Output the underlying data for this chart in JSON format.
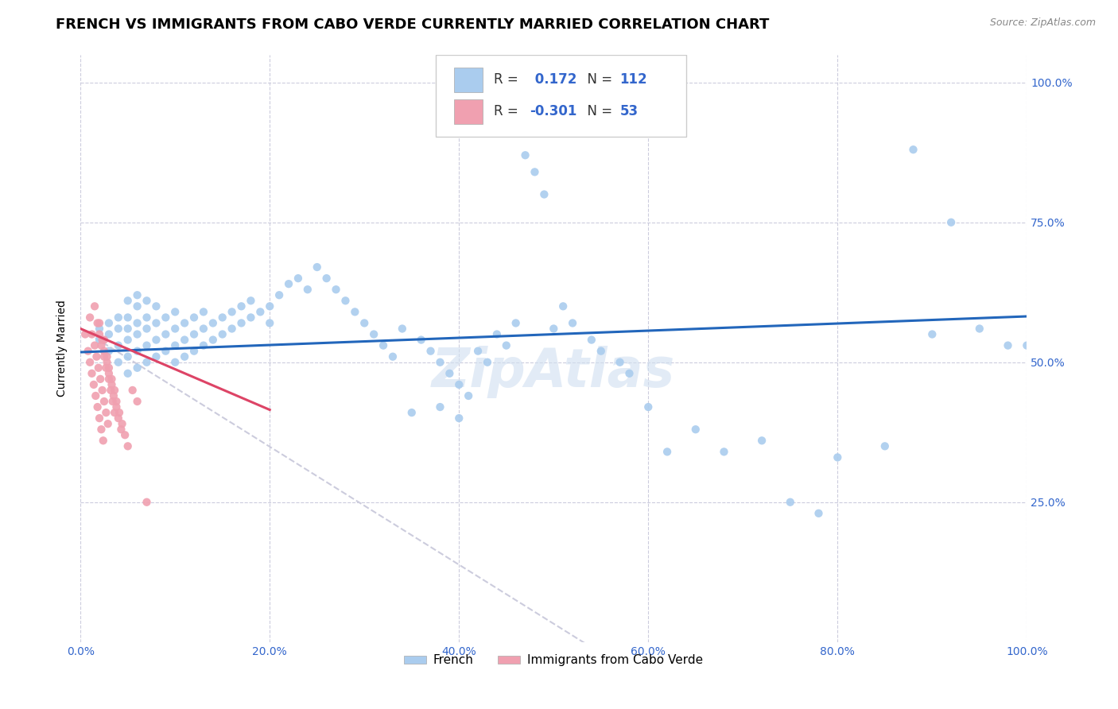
{
  "title": "FRENCH VS IMMIGRANTS FROM CABO VERDE CURRENTLY MARRIED CORRELATION CHART",
  "source": "Source: ZipAtlas.com",
  "ylabel": "Currently Married",
  "xlim": [
    0.0,
    1.0
  ],
  "ylim": [
    0.0,
    1.05
  ],
  "blue_color": "#aaccee",
  "pink_color": "#f0a0b0",
  "blue_line_color": "#2266bb",
  "pink_line_color": "#dd4466",
  "dash_line_color": "#ccccdd",
  "R1": 0.172,
  "N1": 112,
  "R2": -0.301,
  "N2": 53,
  "blue_scatter_x": [
    0.02,
    0.02,
    0.03,
    0.03,
    0.03,
    0.04,
    0.04,
    0.04,
    0.04,
    0.05,
    0.05,
    0.05,
    0.05,
    0.05,
    0.05,
    0.06,
    0.06,
    0.06,
    0.06,
    0.06,
    0.06,
    0.07,
    0.07,
    0.07,
    0.07,
    0.07,
    0.08,
    0.08,
    0.08,
    0.08,
    0.09,
    0.09,
    0.09,
    0.1,
    0.1,
    0.1,
    0.1,
    0.11,
    0.11,
    0.11,
    0.12,
    0.12,
    0.12,
    0.13,
    0.13,
    0.13,
    0.14,
    0.14,
    0.15,
    0.15,
    0.16,
    0.16,
    0.17,
    0.17,
    0.18,
    0.18,
    0.19,
    0.2,
    0.2,
    0.21,
    0.22,
    0.23,
    0.24,
    0.25,
    0.26,
    0.27,
    0.28,
    0.29,
    0.3,
    0.31,
    0.32,
    0.33,
    0.34,
    0.36,
    0.37,
    0.38,
    0.39,
    0.4,
    0.41,
    0.42,
    0.43,
    0.44,
    0.45,
    0.46,
    0.47,
    0.48,
    0.49,
    0.5,
    0.51,
    0.52,
    0.54,
    0.55,
    0.57,
    0.58,
    0.6,
    0.62,
    0.65,
    0.68,
    0.72,
    0.75,
    0.78,
    0.8,
    0.85,
    0.88,
    0.9,
    0.92,
    0.95,
    0.98,
    1.0,
    0.35,
    0.38,
    0.4
  ],
  "blue_scatter_y": [
    0.54,
    0.56,
    0.52,
    0.55,
    0.57,
    0.5,
    0.53,
    0.56,
    0.58,
    0.48,
    0.51,
    0.54,
    0.56,
    0.58,
    0.61,
    0.49,
    0.52,
    0.55,
    0.57,
    0.6,
    0.62,
    0.5,
    0.53,
    0.56,
    0.58,
    0.61,
    0.51,
    0.54,
    0.57,
    0.6,
    0.52,
    0.55,
    0.58,
    0.5,
    0.53,
    0.56,
    0.59,
    0.51,
    0.54,
    0.57,
    0.52,
    0.55,
    0.58,
    0.53,
    0.56,
    0.59,
    0.54,
    0.57,
    0.55,
    0.58,
    0.56,
    0.59,
    0.57,
    0.6,
    0.58,
    0.61,
    0.59,
    0.57,
    0.6,
    0.62,
    0.64,
    0.65,
    0.63,
    0.67,
    0.65,
    0.63,
    0.61,
    0.59,
    0.57,
    0.55,
    0.53,
    0.51,
    0.56,
    0.54,
    0.52,
    0.5,
    0.48,
    0.46,
    0.44,
    0.52,
    0.5,
    0.55,
    0.53,
    0.57,
    0.87,
    0.84,
    0.8,
    0.56,
    0.6,
    0.57,
    0.54,
    0.52,
    0.5,
    0.48,
    0.42,
    0.34,
    0.38,
    0.34,
    0.36,
    0.25,
    0.23,
    0.33,
    0.35,
    0.88,
    0.55,
    0.75,
    0.56,
    0.53,
    0.53,
    0.41,
    0.42,
    0.4
  ],
  "pink_scatter_x": [
    0.005,
    0.008,
    0.01,
    0.012,
    0.014,
    0.016,
    0.018,
    0.02,
    0.022,
    0.024,
    0.01,
    0.012,
    0.015,
    0.017,
    0.019,
    0.021,
    0.023,
    0.025,
    0.027,
    0.029,
    0.015,
    0.018,
    0.02,
    0.022,
    0.025,
    0.027,
    0.03,
    0.032,
    0.034,
    0.036,
    0.02,
    0.023,
    0.025,
    0.028,
    0.03,
    0.033,
    0.035,
    0.038,
    0.04,
    0.043,
    0.025,
    0.028,
    0.03,
    0.033,
    0.036,
    0.038,
    0.041,
    0.044,
    0.047,
    0.05,
    0.055,
    0.06,
    0.07
  ],
  "pink_scatter_y": [
    0.55,
    0.52,
    0.5,
    0.48,
    0.46,
    0.44,
    0.42,
    0.4,
    0.38,
    0.36,
    0.58,
    0.55,
    0.53,
    0.51,
    0.49,
    0.47,
    0.45,
    0.43,
    0.41,
    0.39,
    0.6,
    0.57,
    0.55,
    0.53,
    0.51,
    0.49,
    0.47,
    0.45,
    0.43,
    0.41,
    0.57,
    0.54,
    0.52,
    0.5,
    0.48,
    0.46,
    0.44,
    0.42,
    0.4,
    0.38,
    0.54,
    0.51,
    0.49,
    0.47,
    0.45,
    0.43,
    0.41,
    0.39,
    0.37,
    0.35,
    0.45,
    0.43,
    0.25
  ],
  "blue_trend_x": [
    0.0,
    1.0
  ],
  "blue_trend_y": [
    0.518,
    0.582
  ],
  "pink_trend_x": [
    0.0,
    0.2
  ],
  "pink_trend_y": [
    0.56,
    0.415
  ],
  "dash_trend_x": [
    0.0,
    0.55
  ],
  "dash_trend_y": [
    0.56,
    -0.02
  ],
  "watermark": "ZipAtlas",
  "legend1_label": "French",
  "legend2_label": "Immigrants from Cabo Verde",
  "title_fontsize": 13,
  "axis_label_fontsize": 10,
  "tick_fontsize": 10,
  "value_color": "#3366cc"
}
